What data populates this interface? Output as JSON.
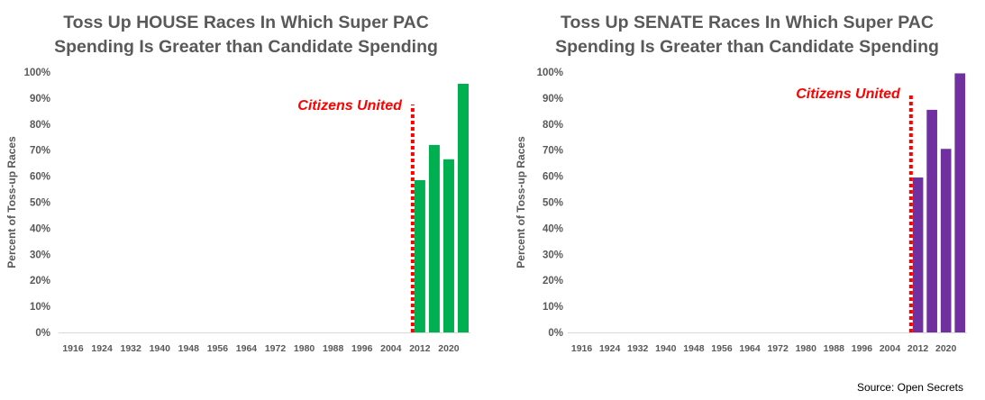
{
  "source": "Source: Open Secrets",
  "chart_data": [
    {
      "type": "bar",
      "title": [
        "Toss Up HOUSE Races In Which Super PAC",
        "Spending Is Greater than Candidate Spending"
      ],
      "ylabel": "Percent of Toss-up Races",
      "ylim": [
        0,
        1
      ],
      "yticks": [
        "0%",
        "10%",
        "20%",
        "30%",
        "40%",
        "50%",
        "60%",
        "70%",
        "80%",
        "90%",
        "100%"
      ],
      "xticks": [
        "1916",
        "1924",
        "1932",
        "1940",
        "1948",
        "1956",
        "1964",
        "1972",
        "1980",
        "1988",
        "1996",
        "2004",
        "2012",
        "2020"
      ],
      "x": [
        2012,
        2016,
        2020,
        2024
      ],
      "values": [
        0.585,
        0.72,
        0.665,
        0.955
      ],
      "color": "#00b050",
      "annotation": {
        "text": "Citizens United",
        "x": 2010,
        "color": "#ff0000"
      }
    },
    {
      "type": "bar",
      "title": [
        "Toss Up SENATE Races In Which Super PAC",
        "Spending Is Greater than Candidate Spending"
      ],
      "ylabel": "Percent of Toss-up Races",
      "ylim": [
        0,
        1
      ],
      "yticks": [
        "0%",
        "10%",
        "20%",
        "30%",
        "40%",
        "50%",
        "60%",
        "70%",
        "80%",
        "90%",
        "100%"
      ],
      "xticks": [
        "1916",
        "1924",
        "1932",
        "1940",
        "1948",
        "1956",
        "1964",
        "1972",
        "1980",
        "1988",
        "1996",
        "2004",
        "2012",
        "2020"
      ],
      "x": [
        2012,
        2016,
        2020,
        2024
      ],
      "values": [
        0.595,
        0.855,
        0.705,
        0.995
      ],
      "color": "#7030a0",
      "annotation": {
        "text": "Citizens United",
        "x": 2010,
        "color": "#ff0000"
      }
    }
  ]
}
